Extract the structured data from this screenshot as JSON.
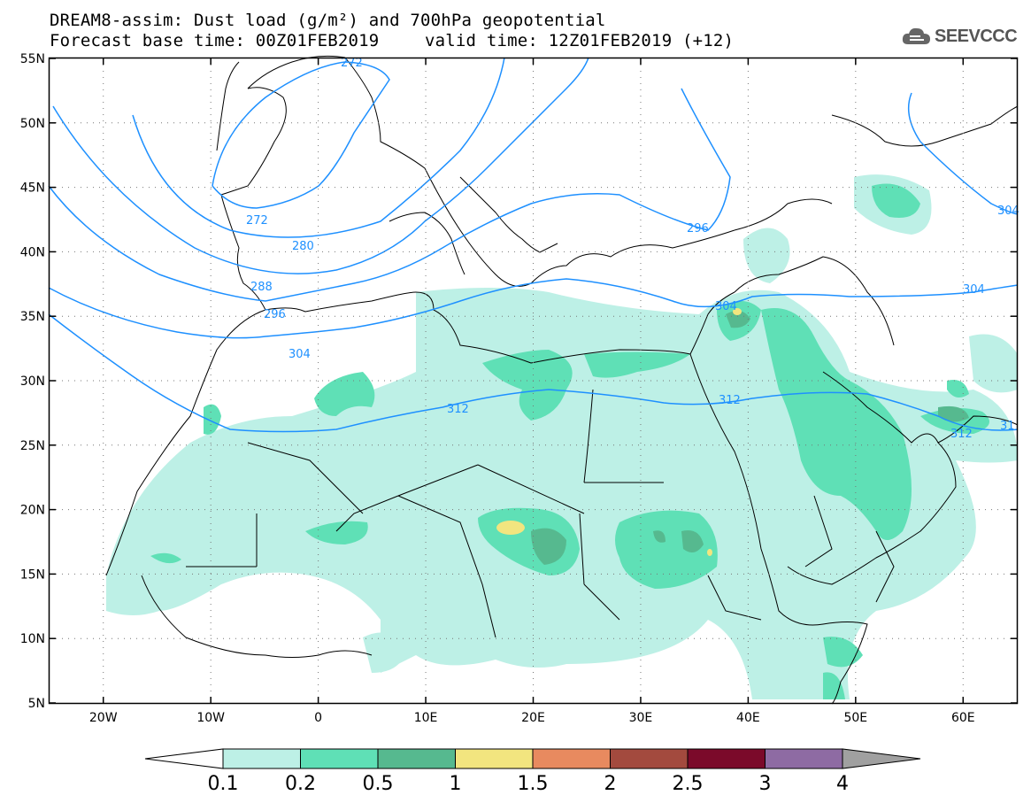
{
  "header": {
    "title": "DREAM8-assim: Dust load (g/m²) and 700hPa geopotential",
    "base_time": "Forecast base time: 00Z01FEB2019",
    "valid_time": "valid time: 12Z01FEB2019 (+12)"
  },
  "logo": {
    "text": "SEEVCCC",
    "icon": "cloud-icon"
  },
  "map": {
    "lon_range": [
      -25,
      65
    ],
    "lat_range": [
      5,
      55
    ],
    "lat_labels": [
      "55N",
      "50N",
      "45N",
      "40N",
      "35N",
      "30N",
      "25N",
      "20N",
      "15N",
      "10N",
      "5N"
    ],
    "lon_labels": [
      "20W",
      "10W",
      "0",
      "10E",
      "20E",
      "30E",
      "40E",
      "50E",
      "60E"
    ],
    "contour_labels": [
      "272",
      "272",
      "280",
      "288",
      "296",
      "296",
      "304",
      "304",
      "304",
      "312",
      "312",
      "312",
      "304",
      "31"
    ]
  },
  "colorbar": {
    "labels": [
      "0.1",
      "0.2",
      "0.5",
      "1",
      "1.5",
      "2",
      "2.5",
      "3",
      "4"
    ],
    "colors": [
      "#bdf0e6",
      "#5fe0b6",
      "#56b98f",
      "#f2e57f",
      "#e88a5f",
      "#a34a3e",
      "#7b0a2a",
      "#8e6ba3"
    ],
    "extend_low_color": "#ffffff",
    "extend_high_color": "#a0a0a0"
  }
}
